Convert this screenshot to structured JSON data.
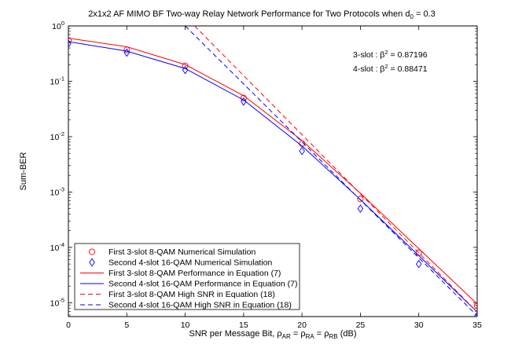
{
  "chart_data": {
    "type": "line",
    "title": "2x1x2 AF MIMO BF Two-way Relay Network Performance for Two Protocols when d",
    "title_subscript": "0",
    "title_suffix": " = 0.3",
    "xlabel": {
      "prefix": "SNR per Message Bit, ",
      "rho1": "ρ",
      "sub1": "AR",
      "eq1": " = ",
      "rho2": "ρ",
      "sub2": "RA",
      "eq2": " = ",
      "rho3": "ρ",
      "sub3": "RB",
      "suffix": " (dB)"
    },
    "ylabel": "Sum-BER",
    "xlim": [
      0,
      35
    ],
    "ylim_log10": [
      -5.25,
      0
    ],
    "x_ticks": [
      0,
      5,
      10,
      15,
      20,
      25,
      30,
      35
    ],
    "x_tick_labels": [
      "0",
      "5",
      "10",
      "15",
      "20",
      "25",
      "30",
      "35"
    ],
    "y_ticks_exp": [
      0,
      -1,
      -2,
      -3,
      -4,
      -5
    ],
    "y_tick_base": "10",
    "y_tick_exponents": [
      "0",
      "-1",
      "-2",
      "-3",
      "-4",
      "-5"
    ],
    "annotations": [
      {
        "prefix": "3-slot : β",
        "sup": "2",
        "suffix": " = 0.87196"
      },
      {
        "prefix": "4-slot : β",
        "sup": "2",
        "suffix": " = 0.88471"
      }
    ],
    "colors": {
      "red": "#ff0000",
      "blue": "#0000ff"
    },
    "series": [
      {
        "name": "First 3-slot 8-QAM Numerical Simulation",
        "style": "marker-circle",
        "color": "#ff0000",
        "x": [
          0,
          5,
          10,
          15,
          20,
          25,
          30,
          35
        ],
        "y": [
          0.55,
          0.37,
          0.19,
          0.05,
          0.0075,
          0.00075,
          8e-05,
          8.8e-06
        ]
      },
      {
        "name": "Second 4-slot 16-QAM Numerical Simulation",
        "style": "marker-diamond",
        "color": "#0000ff",
        "x": [
          0,
          5,
          10,
          15,
          20,
          25,
          30,
          35
        ],
        "y": [
          0.48,
          0.33,
          0.16,
          0.043,
          0.0055,
          0.0005,
          5e-05,
          5.8e-06
        ]
      },
      {
        "name": "First 3-slot 8-QAM Performance in Equation (7)",
        "style": "solid",
        "color": "#ff0000",
        "x": [
          0,
          5,
          10,
          15,
          20,
          25,
          30,
          35
        ],
        "y": [
          0.6,
          0.42,
          0.2,
          0.055,
          0.0085,
          0.00095,
          9.5e-05,
          9.5e-06
        ]
      },
      {
        "name": "Second 4-slot 16-QAM Performance in Equation (7)",
        "style": "solid",
        "color": "#0000ff",
        "x": [
          0,
          5,
          10,
          15,
          20,
          25,
          30,
          35
        ],
        "y": [
          0.52,
          0.35,
          0.17,
          0.046,
          0.0068,
          0.00073,
          7.1e-05,
          6.8e-06
        ]
      },
      {
        "name": "First 3-slot 8-QAM High SNR in Equation (18)",
        "style": "dashed",
        "color": "#ff0000",
        "x": [
          10.8,
          35
        ],
        "y": [
          1.0,
          6.8e-06
        ]
      },
      {
        "name": "Second 4-slot 16-QAM High SNR in Equation (18)",
        "style": "dashed",
        "color": "#0000ff",
        "x": [
          10.0,
          35
        ],
        "y": [
          1.0,
          5.8e-06
        ]
      }
    ]
  }
}
